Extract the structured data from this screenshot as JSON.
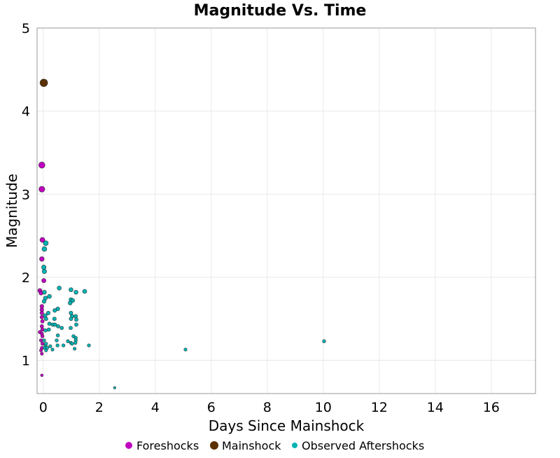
{
  "chart_data": {
    "type": "scatter",
    "title": "Magnitude Vs. Time",
    "xlabel": "Days Since Mainshock",
    "ylabel": "Magnitude",
    "xlim": [
      -0.22,
      17.58
    ],
    "ylim": [
      0.6,
      5
    ],
    "xticks": [
      0,
      2,
      4,
      6,
      8,
      10,
      12,
      14,
      16
    ],
    "yticks": [
      1,
      2,
      3,
      4,
      5
    ],
    "grid": true,
    "legend_placement": "bottom",
    "marker_size_scales_with": "magnitude",
    "series": [
      {
        "name": "Foreshocks",
        "color": "#c000c0",
        "points": [
          [
            -0.05,
            3.35
          ],
          [
            -0.05,
            3.06
          ],
          [
            -0.03,
            2.45
          ],
          [
            -0.05,
            2.22
          ],
          [
            0.02,
            1.96
          ],
          [
            -0.12,
            1.84
          ],
          [
            -0.08,
            1.81
          ],
          [
            -0.05,
            1.65
          ],
          [
            -0.05,
            1.61
          ],
          [
            -0.05,
            1.57
          ],
          [
            -0.05,
            1.52
          ],
          [
            -0.03,
            1.47
          ],
          [
            -0.05,
            1.41
          ],
          [
            -0.03,
            1.37
          ],
          [
            -0.12,
            1.34
          ],
          [
            -0.05,
            1.32
          ],
          [
            -0.03,
            1.29
          ],
          [
            -0.08,
            1.24
          ],
          [
            -0.03,
            1.2
          ],
          [
            -0.05,
            1.15
          ],
          [
            -0.08,
            1.12
          ],
          [
            -0.05,
            1.08
          ],
          [
            -0.05,
            0.82
          ]
        ]
      },
      {
        "name": "Mainshock",
        "color": "#5a3000",
        "points": [
          [
            0.02,
            4.34
          ]
        ]
      },
      {
        "name": "Observed Aftershocks",
        "color": "#00b4b4",
        "points": [
          [
            0.09,
            2.41
          ],
          [
            0.04,
            2.34
          ],
          [
            0.02,
            2.12
          ],
          [
            0.04,
            2.07
          ],
          [
            0.57,
            1.87
          ],
          [
            0.99,
            1.85
          ],
          [
            1.17,
            1.82
          ],
          [
            1.48,
            1.83
          ],
          [
            0.04,
            1.82
          ],
          [
            0.22,
            1.77
          ],
          [
            0.08,
            1.75
          ],
          [
            0.03,
            1.71
          ],
          [
            0.99,
            1.73
          ],
          [
            1.05,
            1.72
          ],
          [
            0.96,
            1.69
          ],
          [
            0.52,
            1.62
          ],
          [
            0.41,
            1.6
          ],
          [
            0.99,
            1.57
          ],
          [
            0.18,
            1.57
          ],
          [
            1.16,
            1.53
          ],
          [
            0.07,
            1.54
          ],
          [
            1.03,
            1.53
          ],
          [
            0.99,
            1.5
          ],
          [
            0.4,
            1.5
          ],
          [
            1.18,
            1.49
          ],
          [
            0.1,
            1.5
          ],
          [
            0.22,
            1.44
          ],
          [
            0.34,
            1.43
          ],
          [
            0.42,
            1.43
          ],
          [
            0.53,
            1.41
          ],
          [
            0.66,
            1.39
          ],
          [
            1.18,
            1.43
          ],
          [
            0.98,
            1.39
          ],
          [
            0.2,
            1.37
          ],
          [
            0.08,
            1.36
          ],
          [
            0.52,
            1.3
          ],
          [
            1.08,
            1.29
          ],
          [
            1.16,
            1.27
          ],
          [
            0.48,
            1.24
          ],
          [
            0.88,
            1.23
          ],
          [
            0.99,
            1.21
          ],
          [
            1.16,
            1.24
          ],
          [
            1.03,
            1.2
          ],
          [
            1.15,
            1.21
          ],
          [
            0.03,
            1.24
          ],
          [
            0.08,
            1.18
          ],
          [
            0.25,
            1.17
          ],
          [
            0.51,
            1.18
          ],
          [
            0.72,
            1.18
          ],
          [
            1.63,
            1.18
          ],
          [
            0.05,
            1.15
          ],
          [
            0.14,
            1.15
          ],
          [
            0.33,
            1.13
          ],
          [
            1.12,
            1.14
          ],
          [
            0.1,
            1.12
          ],
          [
            0.1,
            1.2
          ],
          [
            5.08,
            1.13
          ],
          [
            10.03,
            1.23
          ],
          [
            2.55,
            0.67
          ]
        ]
      }
    ]
  }
}
